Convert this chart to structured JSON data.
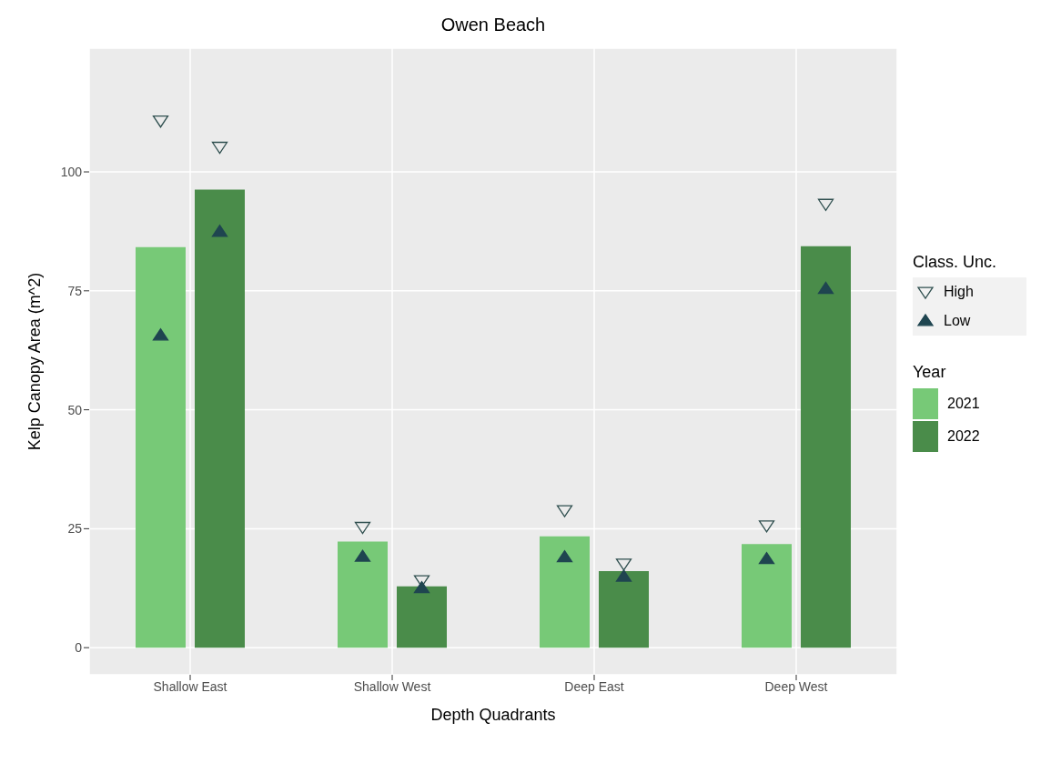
{
  "chart_data": {
    "type": "bar",
    "title": "Owen Beach",
    "xlabel": "Depth Quadrants",
    "ylabel": "Kelp Canopy Area (m^2)",
    "legend_title": "Class. Unc.",
    "annotations": [
      "Year"
    ],
    "categories": [
      "Shallow East",
      "Shallow West",
      "Deep East",
      "Deep West"
    ],
    "series": [
      {
        "name": "2021",
        "color": "#77c977",
        "values": [
          84.2,
          22.3,
          23.4,
          21.8
        ]
      },
      {
        "name": "2022",
        "color": "#4a8c4a",
        "values": [
          96.3,
          12.9,
          16.1,
          84.4
        ]
      },
      {
        "name": "High",
        "type": "scatter",
        "marker": "triangle",
        "color": "#2f4f4f",
        "x": [
          "Shallow East",
          "Shallow East",
          "Shallow West",
          "Shallow West",
          "Deep East",
          "Deep East",
          "Deep West",
          "Deep West"
        ],
        "values": [
          110.8,
          105.3,
          25.4,
          14.2,
          28.9,
          17.7,
          25.7,
          93.3
        ]
      },
      {
        "name": "Low",
        "type": "scatter",
        "marker": "triangle",
        "color": "#1f4550",
        "x": [
          "Shallow East",
          "Shallow East",
          "Shallow West",
          "Shallow West",
          "Deep East",
          "Deep East",
          "Deep West",
          "Deep West"
        ],
        "values": [
          65.6,
          87.4,
          19.1,
          12.5,
          19.0,
          14.9,
          18.6,
          75.4
        ]
      }
    ],
    "ylim": [
      -5.7,
      126
    ],
    "yticks": [
      0,
      25,
      50,
      75,
      100
    ],
    "grid": true,
    "legend": "right"
  }
}
